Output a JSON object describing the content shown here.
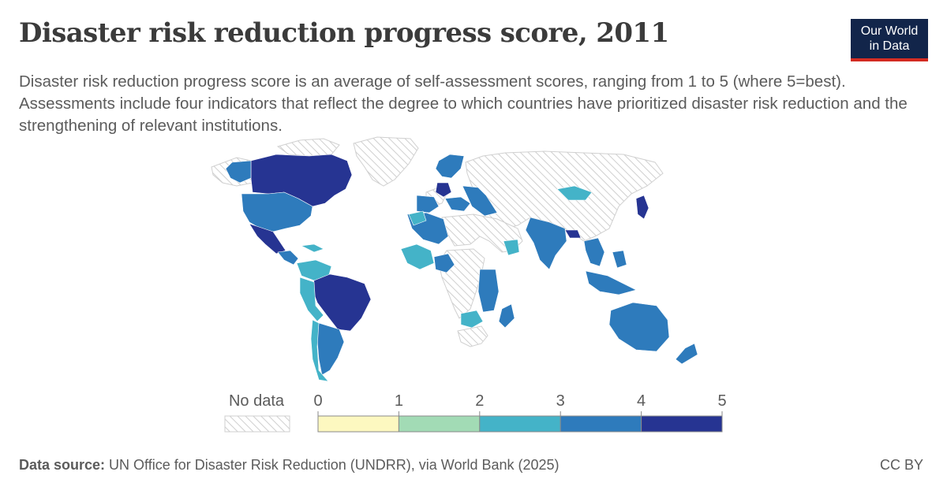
{
  "title": "Disaster risk reduction progress score, 2011",
  "subtitle": "Disaster risk reduction progress score is an average of self-assessment scores, ranging from 1 to 5 (where 5=best). Assessments include four indicators that reflect the degree to which countries have prioritized disaster risk reduction and the strengthening of relevant institutions.",
  "logo": {
    "line1": "Our World",
    "line2": "in Data"
  },
  "legend": {
    "no_data_label": "No data",
    "ticks": [
      "0",
      "1",
      "2",
      "3",
      "4",
      "5"
    ],
    "bins": [
      {
        "from": 0,
        "to": 1,
        "color": "#fdf8c0"
      },
      {
        "from": 1,
        "to": 2,
        "color": "#a2dbb5"
      },
      {
        "from": 2,
        "to": 3,
        "color": "#44b3c8"
      },
      {
        "from": 3,
        "to": 4,
        "color": "#2e7bbc"
      },
      {
        "from": 4,
        "to": 5,
        "color": "#263492"
      }
    ]
  },
  "colors": {
    "score_0_1": "#fdf8c0",
    "score_1_2": "#a2dbb5",
    "score_2_3": "#44b3c8",
    "score_3_4": "#2e7bbc",
    "score_4_5": "#263492",
    "no_data_stroke": "#c8c8c8",
    "logo_bg": "#12254a",
    "logo_accent": "#d42b21"
  },
  "footer": {
    "source_label": "Data source:",
    "source_text": " UN Office for Disaster Risk Reduction (UNDRR), via World Bank (2025)",
    "license": "CC BY"
  }
}
